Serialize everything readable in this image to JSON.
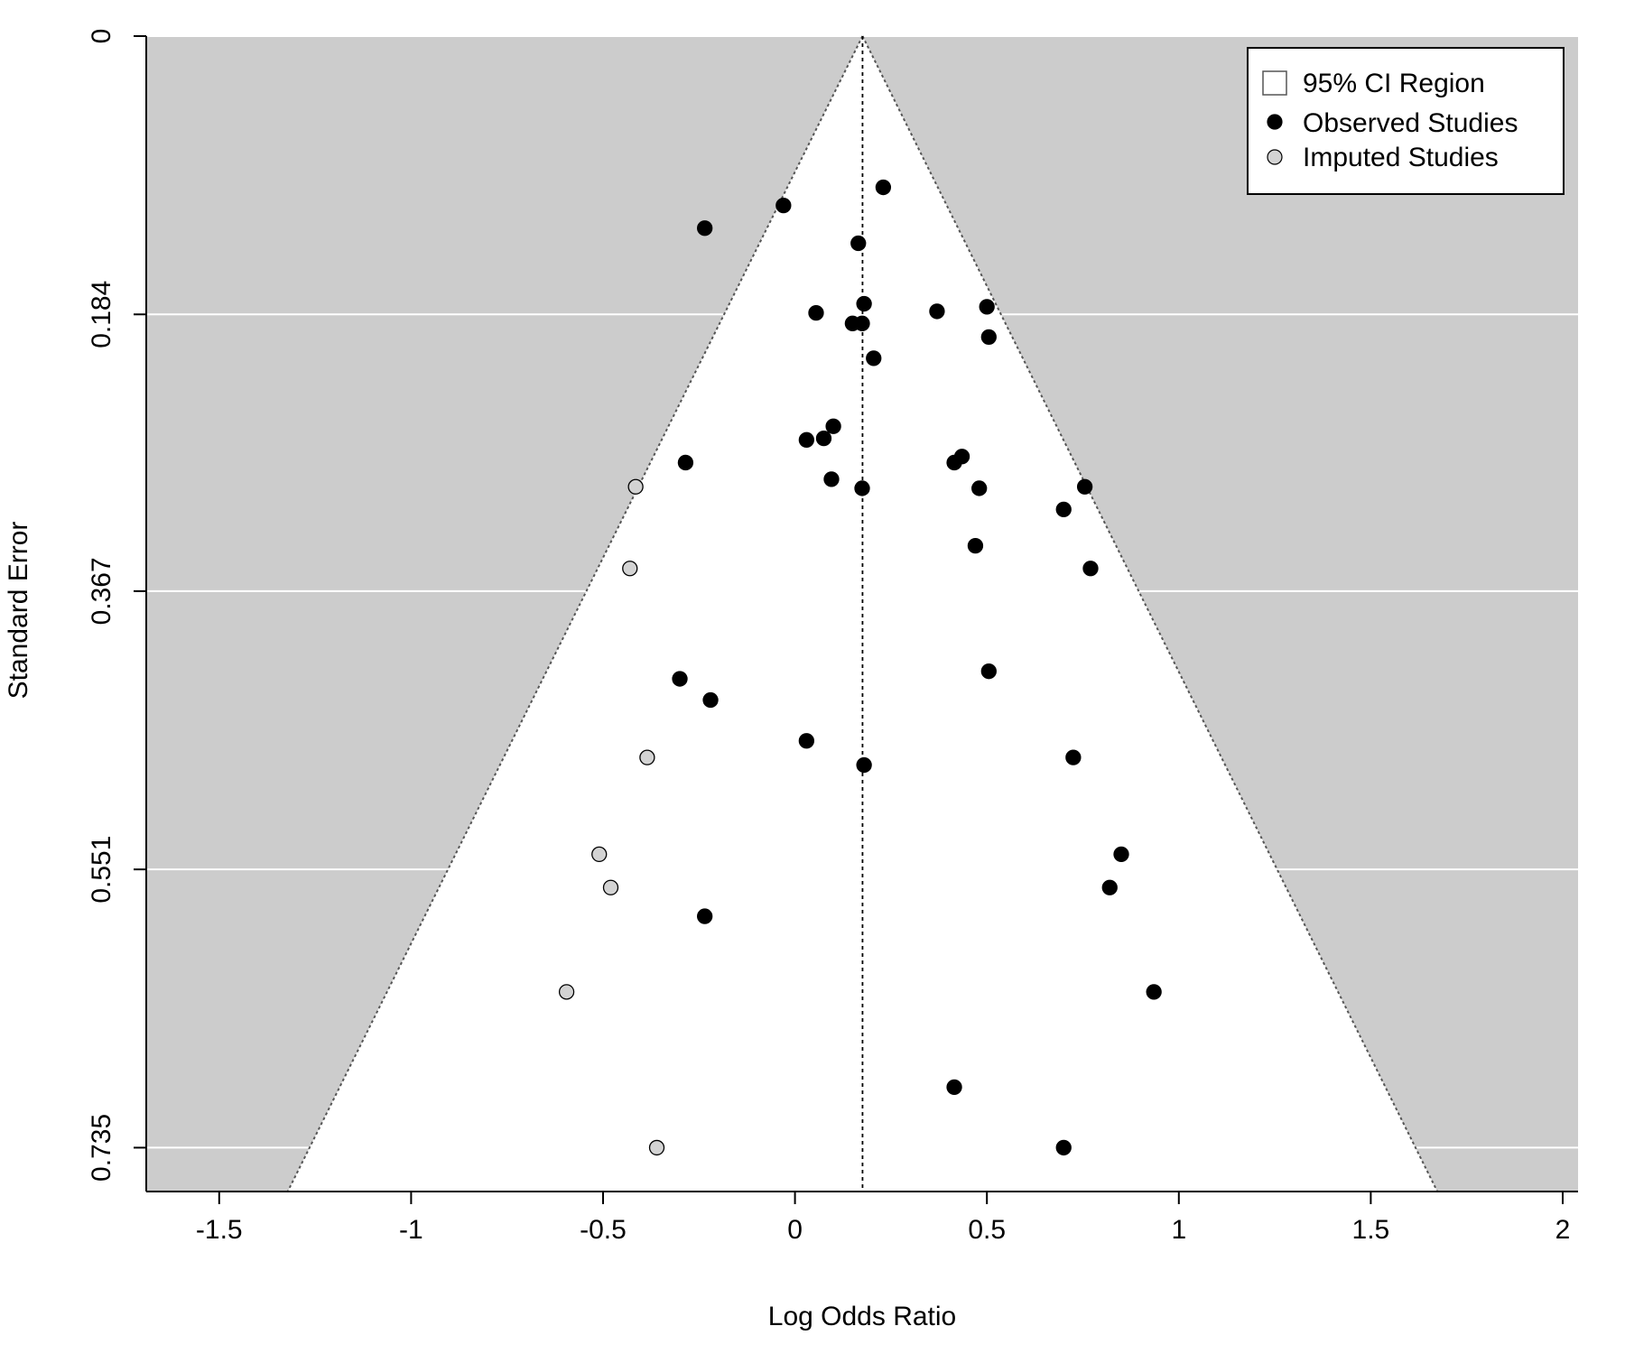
{
  "chart_data": {
    "type": "scatter",
    "subtype": "funnel-plot",
    "title": "",
    "xlabel": "Log Odds Ratio",
    "ylabel": "Standard Error",
    "xlim": [
      -1.69,
      2.04
    ],
    "ylim": [
      0.764,
      0
    ],
    "y_axis_reversed": true,
    "x_ticks": [
      -1.5,
      -1,
      -0.5,
      0,
      0.5,
      1,
      1.5,
      2
    ],
    "x_tick_labels": [
      "-1.5",
      "-1",
      "-0.5",
      "0",
      "0.5",
      "1",
      "1.5",
      "2"
    ],
    "y_ticks": [
      0,
      0.184,
      0.367,
      0.551,
      0.735
    ],
    "y_tick_labels": [
      "0",
      "0.184",
      "0.367",
      "0.551",
      "0.735"
    ],
    "grid": "horizontal-at-y-ticks",
    "center_estimate": 0.176,
    "ci_level": 0.95,
    "colors": {
      "background_region": "#cccccc",
      "ci_region": "#ffffff",
      "gridline": "#ffffff",
      "observed_fill": "#000000",
      "imputed_fill": "#d3d3d3",
      "point_stroke": "#000000"
    },
    "legend": {
      "position": "top-right",
      "entries": [
        {
          "label": "95% CI Region",
          "marker": "square-open"
        },
        {
          "label": "Observed Studies",
          "marker": "circle-filled-black"
        },
        {
          "label": "Imputed Studies",
          "marker": "circle-filled-gray"
        }
      ]
    },
    "series": [
      {
        "name": "Observed Studies",
        "points": [
          [
            0.23,
            0.1
          ],
          [
            -0.03,
            0.112
          ],
          [
            -0.235,
            0.127
          ],
          [
            0.165,
            0.137
          ],
          [
            0.18,
            0.177
          ],
          [
            0.055,
            0.183
          ],
          [
            0.37,
            0.182
          ],
          [
            0.5,
            0.179
          ],
          [
            0.15,
            0.19
          ],
          [
            0.175,
            0.19
          ],
          [
            0.505,
            0.199
          ],
          [
            0.205,
            0.213
          ],
          [
            0.1,
            0.258
          ],
          [
            0.03,
            0.267
          ],
          [
            0.075,
            0.266
          ],
          [
            0.435,
            0.278
          ],
          [
            0.415,
            0.282
          ],
          [
            -0.285,
            0.282
          ],
          [
            0.095,
            0.293
          ],
          [
            0.175,
            0.299
          ],
          [
            0.48,
            0.299
          ],
          [
            0.755,
            0.298
          ],
          [
            0.7,
            0.313
          ],
          [
            0.47,
            0.337
          ],
          [
            0.77,
            0.352
          ],
          [
            0.505,
            0.42
          ],
          [
            -0.3,
            0.425
          ],
          [
            -0.22,
            0.439
          ],
          [
            0.03,
            0.466
          ],
          [
            0.18,
            0.482
          ],
          [
            0.725,
            0.477
          ],
          [
            0.85,
            0.541
          ],
          [
            0.82,
            0.563
          ],
          [
            -0.235,
            0.582
          ],
          [
            0.935,
            0.632
          ],
          [
            0.415,
            0.695
          ],
          [
            0.7,
            0.735
          ]
        ]
      },
      {
        "name": "Imputed Studies",
        "points": [
          [
            -0.415,
            0.298
          ],
          [
            -0.43,
            0.352
          ],
          [
            -0.385,
            0.477
          ],
          [
            -0.51,
            0.541
          ],
          [
            -0.48,
            0.563
          ],
          [
            -0.595,
            0.632
          ],
          [
            -0.36,
            0.735
          ]
        ]
      }
    ]
  }
}
